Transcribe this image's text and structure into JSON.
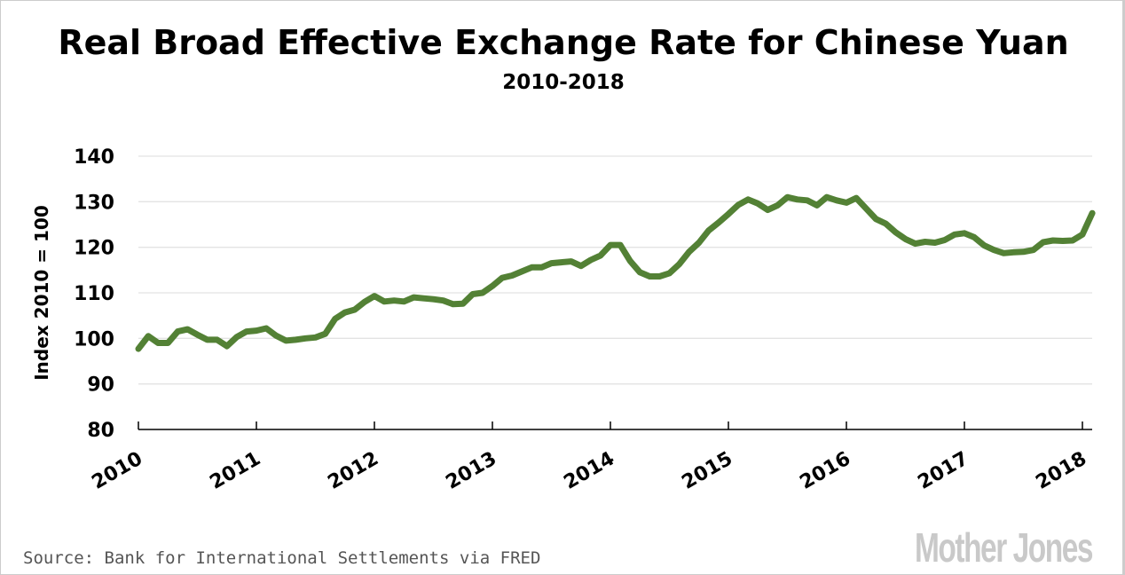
{
  "chart_data": {
    "type": "line",
    "title": "Real Broad Effective Exchange Rate for Chinese Yuan",
    "subtitle": "2010-2018",
    "xlabel": "",
    "ylabel": "Index 2010 = 100",
    "ylim": [
      80,
      140
    ],
    "yticks": [
      "80",
      "90",
      "100",
      "110",
      "120",
      "130",
      "140"
    ],
    "xticks": [
      "2010",
      "2011",
      "2012",
      "2013",
      "2014",
      "2015",
      "2016",
      "2017",
      "2018"
    ],
    "x_start": "2010-01",
    "x_frequency": "monthly",
    "grid": true,
    "legend": "none",
    "line_color": "#538135",
    "values": [
      97.7,
      100.5,
      99,
      99,
      101.5,
      102,
      100.8,
      99.7,
      99.7,
      98.3,
      100.3,
      101.5,
      101.7,
      102.2,
      100.6,
      99.5,
      99.7,
      100,
      100.2,
      101,
      104.3,
      105.7,
      106.3,
      108,
      109.3,
      108.1,
      108.3,
      108.1,
      109,
      108.8,
      108.6,
      108.3,
      107.5,
      107.6,
      109.7,
      110,
      111.5,
      113.3,
      113.8,
      114.7,
      115.6,
      115.6,
      116.5,
      116.7,
      116.9,
      115.9,
      117.2,
      118.2,
      120.5,
      120.5,
      117,
      114.5,
      113.6,
      113.6,
      114.3,
      116.3,
      119,
      121,
      123.7,
      125.4,
      127.3,
      129.3,
      130.5,
      129.6,
      128.2,
      129.2,
      131,
      130.5,
      130.3,
      129.2,
      131,
      130.3,
      129.8,
      130.8,
      128.5,
      126.2,
      125.2,
      123.3,
      121.8,
      120.8,
      121.2,
      121,
      121.6,
      122.8,
      123.1,
      122.2,
      120.4,
      119.4,
      118.7,
      118.9,
      119,
      119.4,
      121.1,
      121.5,
      121.4,
      121.5,
      122.8,
      127.5
    ]
  },
  "source": "Source: Bank for International Settlements via FRED",
  "logo": "Mother Jones"
}
